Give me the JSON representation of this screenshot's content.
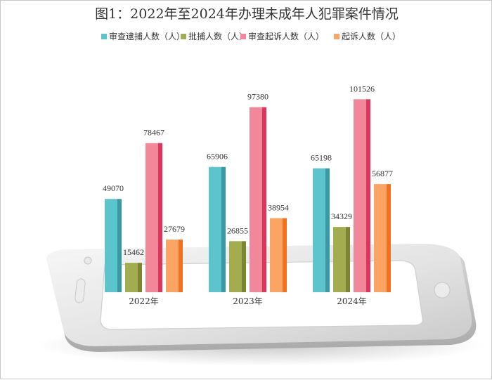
{
  "chart_data": {
    "type": "bar",
    "title": "图1：2022年至2024年办理未成年人犯罪案件情况",
    "categories": [
      "2022年",
      "2023年",
      "2024年"
    ],
    "series": [
      {
        "name": "审查逮捕人数（人）",
        "values": [
          49070,
          65906,
          65198
        ],
        "color": "#5bc4cc",
        "side": "#3a9aa3"
      },
      {
        "name": "批捕人数（人）",
        "values": [
          15462,
          26855,
          34329
        ],
        "color": "#a3ad4f",
        "side": "#7c8532"
      },
      {
        "name": "审查起诉人数（人）",
        "values": [
          78467,
          97380,
          101526
        ],
        "color": "#f2879a",
        "side": "#e0345a"
      },
      {
        "name": "起诉人数（人）",
        "values": [
          27679,
          38954,
          56877
        ],
        "color": "#fba464",
        "side": "#f0721f"
      }
    ],
    "ylim": [
      0,
      112000
    ],
    "legend_position": "top",
    "grid": false
  }
}
